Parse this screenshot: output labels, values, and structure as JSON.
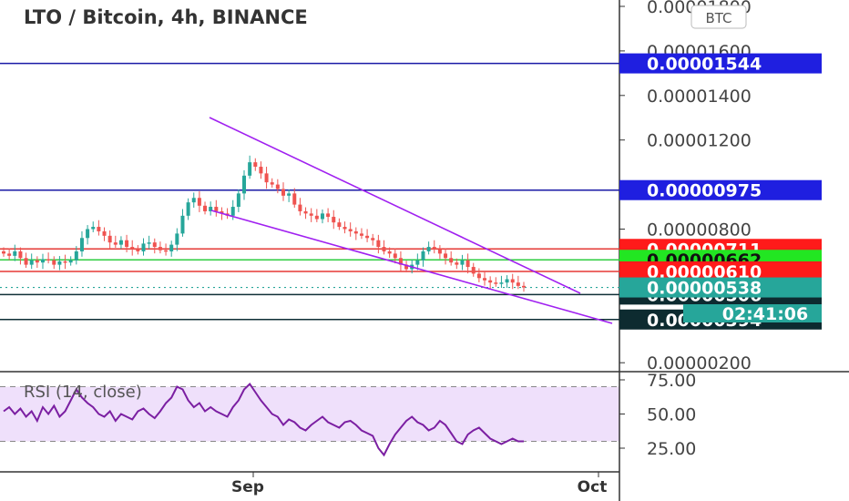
{
  "chart_data": {
    "type": "candlestick",
    "title": "LTO / Bitcoin, 4h, BINANCE",
    "currency_button": "BTC",
    "x_ticks": [
      "Sep",
      "Oct"
    ],
    "price_axis": {
      "ticks": [
        {
          "label": "0.00001800",
          "value": 1800
        },
        {
          "label": "0.00001600",
          "value": 1600
        },
        {
          "label": "0.00001400",
          "value": 1400
        },
        {
          "label": "0.00001200",
          "value": 1200
        },
        {
          "label": "0.00000800",
          "value": 800
        },
        {
          "label": "0.00000200",
          "value": 200
        }
      ],
      "ylim": [
        "0.00000200",
        "0.00001800"
      ]
    },
    "horizontal_lines": [
      {
        "label": "0.00001544",
        "value": 1544,
        "color": "#1a1aa6",
        "tag_color": "#1f1fe0"
      },
      {
        "label": "0.00000975",
        "value": 975,
        "color": "#1a1aa6",
        "tag_color": "#1f1fe0"
      },
      {
        "label": "0.00000711",
        "value": 711,
        "color": "#e53935",
        "tag_color": "#ff1a1a"
      },
      {
        "label": "0.00000662",
        "value": 662,
        "color": "#2ecc40",
        "tag_color": "#22e622"
      },
      {
        "label": "0.00000610",
        "value": 610,
        "color": "#e53935",
        "tag_color": "#ff1a1a"
      },
      {
        "label": "0.00000506",
        "value": 506,
        "color": "#0f2f36",
        "tag_color": "#0d2b30"
      },
      {
        "label": "0.00000394",
        "value": 394,
        "color": "#0f2f36",
        "tag_color": "#0d2b30"
      }
    ],
    "last_price": {
      "label": "0.00000538",
      "value": 538,
      "color": "#26a69a"
    },
    "countdown": "02:41:06",
    "up_color": "#26a69a",
    "down_color": "#ef5350",
    "trendline_color": "#a020f0",
    "candle_closes": [
      690,
      680,
      700,
      670,
      640,
      660,
      650,
      665,
      660,
      640,
      655,
      650,
      660,
      700,
      760,
      800,
      810,
      790,
      770,
      740,
      730,
      750,
      720,
      710,
      700,
      735,
      740,
      720,
      705,
      700,
      730,
      780,
      860,
      920,
      940,
      905,
      880,
      900,
      880,
      870,
      860,
      900,
      960,
      1040,
      1100,
      1080,
      1050,
      1010,
      1000,
      980,
      950,
      960,
      910,
      880,
      870,
      860,
      845,
      870,
      855,
      830,
      810,
      800,
      790,
      780,
      770,
      760,
      750,
      720,
      700,
      690,
      670,
      640,
      620,
      640,
      660,
      700,
      720,
      710,
      690,
      670,
      650,
      640,
      660,
      630,
      600,
      580,
      570,
      560,
      555,
      560,
      575,
      560,
      545,
      538
    ],
    "rsi": {
      "label": "RSI (14, close)",
      "ticks": [
        {
          "label": "75.00",
          "value": 75
        },
        {
          "label": "50.00",
          "value": 50
        },
        {
          "label": "25.00",
          "value": 25
        }
      ],
      "band": [
        30,
        70
      ],
      "values": [
        52,
        55,
        50,
        54,
        48,
        52,
        45,
        55,
        50,
        56,
        48,
        52,
        60,
        68,
        62,
        58,
        55,
        50,
        48,
        52,
        45,
        50,
        48,
        46,
        52,
        54,
        50,
        47,
        52,
        58,
        62,
        70,
        68,
        60,
        55,
        58,
        52,
        55,
        52,
        50,
        48,
        55,
        60,
        68,
        72,
        66,
        60,
        55,
        50,
        48,
        42,
        46,
        44,
        40,
        38,
        42,
        45,
        48,
        44,
        42,
        40,
        44,
        45,
        42,
        38,
        36,
        34,
        25,
        20,
        28,
        35,
        40,
        45,
        48,
        44,
        42,
        38,
        40,
        45,
        42,
        36,
        30,
        28,
        35,
        38,
        40,
        36,
        32,
        30,
        28,
        30,
        32,
        30,
        30
      ],
      "line_color": "#7b1fa2",
      "band_color": "#efe0fb"
    }
  }
}
